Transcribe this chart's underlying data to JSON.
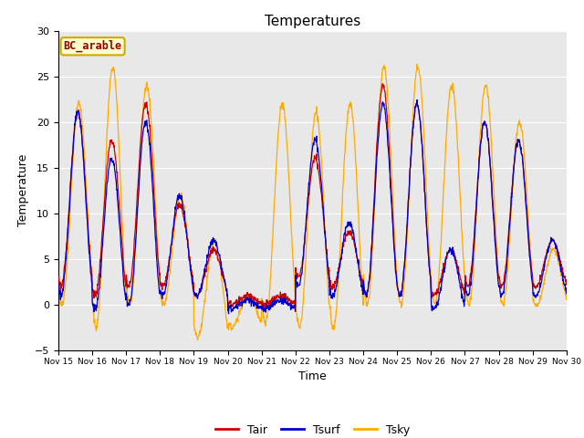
{
  "title": "Temperatures",
  "xlabel": "Time",
  "ylabel": "Temperature",
  "legend_label": "BC_arable",
  "line_labels": [
    "Tair",
    "Tsurf",
    "Tsky"
  ],
  "line_colors": [
    "#cc0000",
    "#0000cc",
    "#ffaa00"
  ],
  "ylim": [
    -5,
    30
  ],
  "yticks": [
    -5,
    0,
    5,
    10,
    15,
    20,
    25,
    30
  ],
  "xtick_labels": [
    "Nov 15",
    "Nov 16",
    "Nov 17",
    "Nov 18",
    "Nov 19",
    "Nov 20",
    "Nov 21",
    "Nov 22",
    "Nov 23",
    "Nov 24",
    "Nov 25",
    "Nov 26",
    "Nov 27",
    "Nov 28",
    "Nov 29",
    "Nov 30"
  ],
  "bg_color": "#e8e8e8",
  "legend_box_color": "#ffffcc",
  "legend_box_edge": "#ccaa00",
  "legend_label_color": "#990000",
  "fig_bg": "#ffffff"
}
